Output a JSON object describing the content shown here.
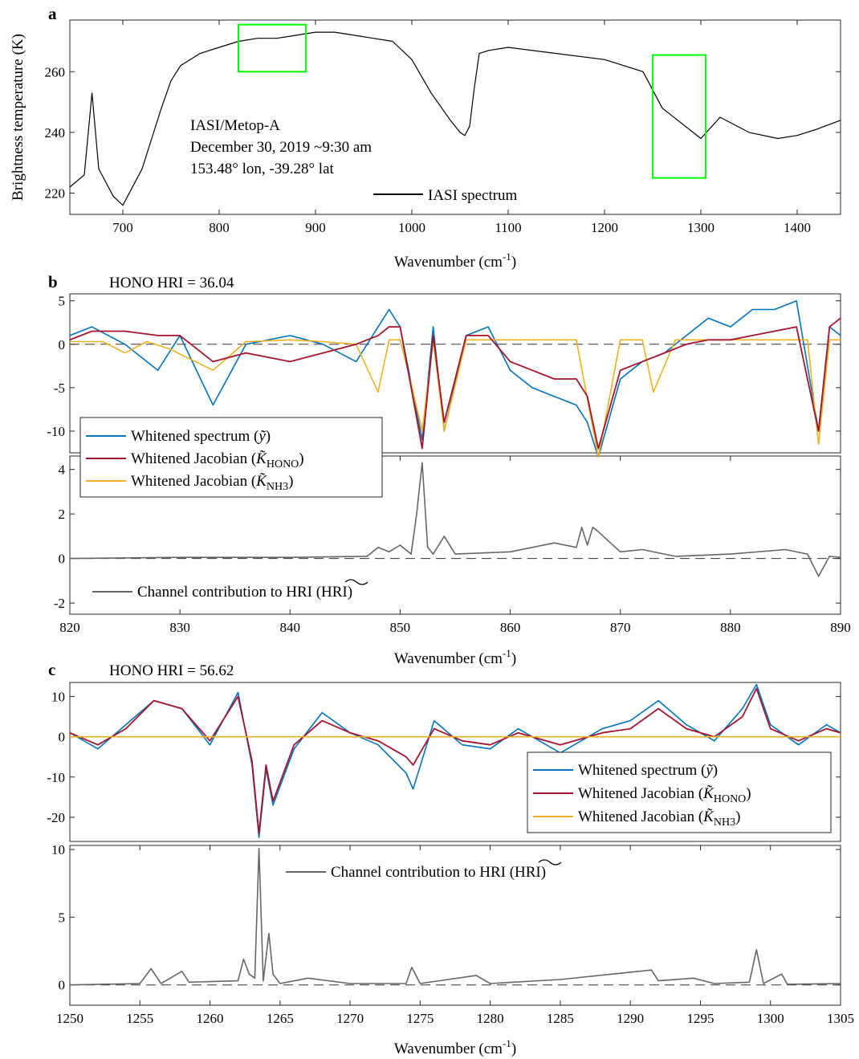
{
  "panels": {
    "a": {
      "letter": "a",
      "instrument": "IASI/Metop-A",
      "date": "December 30, 2019  ~9:30 am",
      "location": "153.48° lon, -39.28° lat",
      "legend": "IASI spectrum"
    },
    "b": {
      "letter": "b",
      "hri_text": "HONO HRI = 36.04",
      "xlabel": "Wavenumber (cm",
      "xlabel_sup": "-1",
      "xlabel_end": ")",
      "legend_spectrum": "Whitened spectrum (",
      "legend_jac_hono": "Whitened Jacobian (",
      "legend_jac_nh3": "Whitened Jacobian (",
      "legend_contrib": "Channel contribution to HRI ("
    },
    "c": {
      "letter": "c",
      "hri_text": "HONO HRI = 56.62",
      "legend_spectrum": "Whitened spectrum (",
      "legend_jac_hono": "Whitened Jacobian (",
      "legend_jac_nh3": "Whitened Jacobian (",
      "legend_contrib": "Channel contribution to HRI ("
    }
  },
  "labels": {
    "ylabel_a": "Brightness temperature (K)",
    "xlabel": "Wavenumber (cm",
    "xlabel_sup": "-1",
    "xlabel_close": ")",
    "sym_y": "ỹ",
    "sym_K": "K̃",
    "sub_hono": "HONO",
    "sub_nh3": "NH3",
    "sym_hri": "HRI"
  },
  "colors": {
    "spectrum": "#0072BD",
    "jacobian_hono": "#A2142F",
    "jacobian_nh3": "#EDB120",
    "contribution": "#666666",
    "iasi": "#000000",
    "highlight_box": "#00FF00"
  },
  "chart_data": [
    {
      "id": "a",
      "type": "line",
      "xlabel": "Wavenumber (cm-1)",
      "ylabel": "Brightness temperature (K)",
      "xlim": [
        645,
        1445
      ],
      "ylim": [
        213,
        277
      ],
      "xticks": [
        700,
        800,
        900,
        1000,
        1100,
        1200,
        1300,
        1400
      ],
      "yticks": [
        220,
        240,
        260
      ],
      "highlight_boxes": [
        {
          "x": [
            820,
            890
          ],
          "y": [
            260,
            275.5
          ]
        },
        {
          "x": [
            1250,
            1305
          ],
          "y": [
            225,
            265.5
          ]
        }
      ],
      "series": [
        {
          "name": "IASI spectrum",
          "color": "#000000",
          "x": [
            645,
            660,
            668,
            675,
            690,
            700,
            720,
            730,
            740,
            750,
            760,
            780,
            800,
            820,
            840,
            860,
            880,
            900,
            920,
            940,
            960,
            980,
            1000,
            1020,
            1040,
            1050,
            1055,
            1060,
            1065,
            1070,
            1080,
            1100,
            1150,
            1200,
            1240,
            1260,
            1300,
            1320,
            1350,
            1380,
            1400,
            1420,
            1445
          ],
          "y": [
            222,
            226,
            253,
            228,
            219,
            216,
            228,
            238,
            248,
            257,
            262,
            266,
            268,
            270,
            271,
            271,
            272,
            273,
            273,
            272,
            271,
            270,
            264,
            253,
            244,
            240,
            239,
            242,
            255,
            266,
            267,
            268,
            266,
            264,
            260,
            248,
            238,
            245,
            240,
            238,
            239,
            241,
            244
          ]
        }
      ]
    },
    {
      "id": "b-upper",
      "type": "line",
      "xlim": [
        820,
        890
      ],
      "ylim": [
        -12.5,
        5.8
      ],
      "yticks": [
        -10,
        -5,
        0,
        5
      ],
      "series": [
        {
          "name": "Whitened spectrum",
          "color": "#0072BD",
          "x": [
            820,
            822,
            825,
            828,
            830,
            833,
            836,
            840,
            843,
            846,
            848,
            849,
            850,
            852,
            853,
            854,
            856,
            858,
            860,
            862,
            864,
            866,
            867,
            868,
            870,
            872,
            874,
            876,
            878,
            880,
            882,
            884,
            886,
            888,
            889,
            890
          ],
          "y": [
            1,
            2,
            0,
            -3,
            1,
            -7,
            0,
            1,
            0,
            -2,
            2,
            4,
            2,
            -11,
            2,
            -10,
            1,
            2,
            -3,
            -5,
            -6,
            -7,
            -9,
            -13,
            -4,
            -2,
            -1,
            1,
            3,
            2,
            4,
            4,
            5,
            -10,
            2,
            1
          ]
        },
        {
          "name": "Whitened Jacobian (HONO)",
          "color": "#A2142F",
          "x": [
            820,
            822,
            825,
            828,
            830,
            833,
            836,
            840,
            843,
            846,
            848,
            849,
            850,
            852,
            853,
            854,
            856,
            858,
            860,
            862,
            864,
            866,
            867,
            868,
            870,
            872,
            874,
            876,
            878,
            880,
            882,
            884,
            886,
            888,
            889,
            890
          ],
          "y": [
            0.5,
            1.5,
            1.5,
            1,
            1,
            -2,
            -1,
            -2,
            -1,
            0,
            1,
            2,
            2,
            -12,
            1,
            -9,
            1,
            1,
            -2,
            -3,
            -4,
            -4,
            -6,
            -12,
            -3,
            -2,
            -1,
            0,
            0.5,
            0.5,
            1,
            1.5,
            2,
            -10,
            2,
            3
          ]
        },
        {
          "name": "Whitened Jacobian (NH3)",
          "color": "#EDB120",
          "x": [
            820,
            823,
            825,
            827,
            829,
            833,
            836,
            840,
            843,
            846,
            848,
            849,
            850,
            851,
            852,
            853,
            854,
            856,
            860,
            864,
            866,
            868,
            870,
            872,
            873,
            875,
            878,
            880,
            884,
            887,
            888,
            889,
            890
          ],
          "y": [
            0.3,
            0.3,
            -1,
            0.3,
            -0.5,
            -3,
            0.3,
            0.5,
            0.3,
            0,
            -5.5,
            0.5,
            0.5,
            -4.5,
            -10,
            0.5,
            -10,
            0.5,
            0.5,
            0.5,
            0.5,
            -13,
            0.5,
            0.5,
            -5.5,
            0.5,
            0.5,
            0.5,
            0.5,
            0.5,
            -11.5,
            0.5,
            0.5
          ]
        }
      ]
    },
    {
      "id": "b-lower",
      "type": "line",
      "xlabel": "Wavenumber (cm-1)",
      "xlim": [
        820,
        890
      ],
      "ylim": [
        -2.5,
        4.6
      ],
      "xticks": [
        820,
        830,
        840,
        850,
        860,
        870,
        880,
        890
      ],
      "yticks": [
        -2,
        0,
        2,
        4
      ],
      "series": [
        {
          "name": "Channel contribution to HRI",
          "color": "#666666",
          "x": [
            820,
            830,
            840,
            847,
            848,
            849,
            850,
            851,
            851.5,
            852,
            852.5,
            853,
            854,
            855,
            860,
            862,
            864,
            866,
            866.5,
            867,
            867.5,
            868,
            870,
            872,
            875,
            880,
            885,
            887,
            888,
            889,
            890
          ],
          "y": [
            0,
            0.05,
            0.05,
            0.1,
            0.5,
            0.3,
            0.6,
            0.2,
            2,
            4.3,
            0.5,
            0.2,
            1,
            0.2,
            0.3,
            0.5,
            0.7,
            0.5,
            1.4,
            0.6,
            1.4,
            1.2,
            0.3,
            0.4,
            0.1,
            0.2,
            0.4,
            0.2,
            -0.8,
            0.1,
            0.05
          ]
        }
      ]
    },
    {
      "id": "c-upper",
      "type": "line",
      "xlim": [
        1250,
        1305
      ],
      "ylim": [
        -26,
        13.5
      ],
      "yticks": [
        -20,
        -10,
        0,
        10
      ],
      "series": [
        {
          "name": "Whitened spectrum",
          "color": "#0072BD",
          "x": [
            1250,
            1252,
            1254,
            1256,
            1258,
            1260,
            1262,
            1263,
            1263.5,
            1264,
            1264.5,
            1266,
            1268,
            1270,
            1272,
            1274,
            1274.5,
            1276,
            1278,
            1280,
            1282,
            1285,
            1288,
            1290,
            1292,
            1294,
            1296,
            1298,
            1299,
            1300,
            1302,
            1304,
            1305
          ],
          "y": [
            1,
            -3,
            3,
            9,
            7,
            -2,
            11,
            -7,
            -25,
            -8,
            -17,
            -3,
            6,
            1,
            -2,
            -9,
            -13,
            4,
            -2,
            -3,
            2,
            -4,
            2,
            4,
            9,
            3,
            -1,
            7,
            13,
            3,
            -2,
            3,
            1
          ]
        },
        {
          "name": "Whitened Jacobian (HONO)",
          "color": "#A2142F",
          "x": [
            1250,
            1252,
            1254,
            1256,
            1258,
            1260,
            1262,
            1263,
            1263.5,
            1264,
            1264.5,
            1266,
            1268,
            1270,
            1272,
            1274,
            1274.5,
            1276,
            1278,
            1280,
            1282,
            1285,
            1288,
            1290,
            1292,
            1294,
            1296,
            1298,
            1299,
            1300,
            1302,
            1304,
            1305
          ],
          "y": [
            1,
            -2,
            2,
            9,
            7,
            -1,
            10,
            -6,
            -24,
            -7,
            -16,
            -2,
            4,
            1,
            -1,
            -5,
            -7,
            2,
            -1,
            -2,
            1,
            -2,
            1,
            2,
            7,
            2,
            0,
            5,
            12,
            2,
            -1,
            2,
            1
          ]
        },
        {
          "name": "Whitened Jacobian (NH3)",
          "color": "#EDB120",
          "x": [
            1250,
            1305
          ],
          "y": [
            0,
            0
          ]
        }
      ]
    },
    {
      "id": "c-lower",
      "type": "line",
      "xlabel": "Wavenumber (cm-1)",
      "xlim": [
        1250,
        1305
      ],
      "ylim": [
        -1.5,
        10.3
      ],
      "xticks": [
        1250,
        1255,
        1260,
        1265,
        1270,
        1275,
        1280,
        1285,
        1290,
        1295,
        1300,
        1305
      ],
      "yticks": [
        0,
        5,
        10
      ],
      "series": [
        {
          "name": "Channel contribution to HRI",
          "color": "#666666",
          "x": [
            1250,
            1255,
            1255.8,
            1256.5,
            1258,
            1258.5,
            1262,
            1262.4,
            1262.8,
            1263.2,
            1263.5,
            1263.8,
            1264.2,
            1264.5,
            1265,
            1267,
            1270,
            1274,
            1274.4,
            1275,
            1279,
            1280,
            1285,
            1291.5,
            1292,
            1294.5,
            1296,
            1298.5,
            1299,
            1299.5,
            1300.8,
            1301.2,
            1305
          ],
          "y": [
            0,
            0.1,
            1.2,
            0.1,
            1.0,
            0.2,
            0.3,
            1.9,
            0.8,
            0.5,
            10.1,
            0.3,
            3.8,
            0.8,
            0.1,
            0.5,
            0.1,
            0.1,
            1.3,
            0.1,
            0.7,
            0.1,
            0.4,
            1.1,
            0.3,
            0.5,
            0.1,
            0.2,
            2.6,
            0.1,
            0.8,
            0.05,
            0.1
          ]
        }
      ]
    }
  ]
}
